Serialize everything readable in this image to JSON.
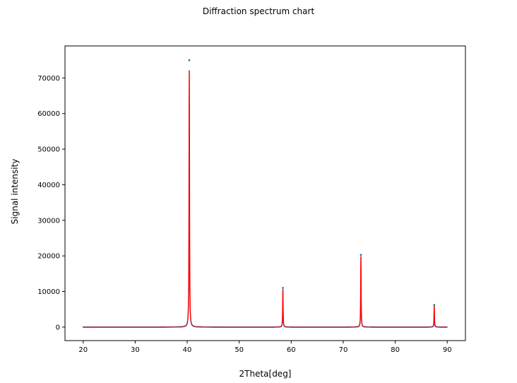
{
  "chart_data": {
    "type": "line",
    "title": "Diffraction spectrum chart",
    "xlabel": "2Theta[deg]",
    "ylabel": "Signal intensity",
    "xlim": [
      16.5,
      93.5
    ],
    "ylim": [
      -3800,
      79000
    ],
    "xticks": [
      20,
      30,
      40,
      50,
      60,
      70,
      80,
      90
    ],
    "yticks": [
      0,
      10000,
      20000,
      30000,
      40000,
      50000,
      60000,
      70000
    ],
    "grid": false,
    "baseline": 0,
    "x_range": [
      20,
      90
    ],
    "peaks": [
      {
        "x": 40.4,
        "height": 72000,
        "width": 0.1
      },
      {
        "x": 58.4,
        "height": 10500,
        "width": 0.09
      },
      {
        "x": 73.4,
        "height": 19800,
        "width": 0.09
      },
      {
        "x": 87.5,
        "height": 6000,
        "width": 0.09
      }
    ],
    "series": [
      {
        "values_ref": "peaks",
        "color": "#ff0000"
      },
      {
        "values_ref": "peaks",
        "color": "#1f77b4"
      }
    ],
    "highlight_points": [
      {
        "x": 40.4,
        "y": 75000
      },
      {
        "x": 58.4,
        "y": 11000
      },
      {
        "x": 73.4,
        "y": 20300
      },
      {
        "x": 87.5,
        "y": 6200
      }
    ]
  }
}
